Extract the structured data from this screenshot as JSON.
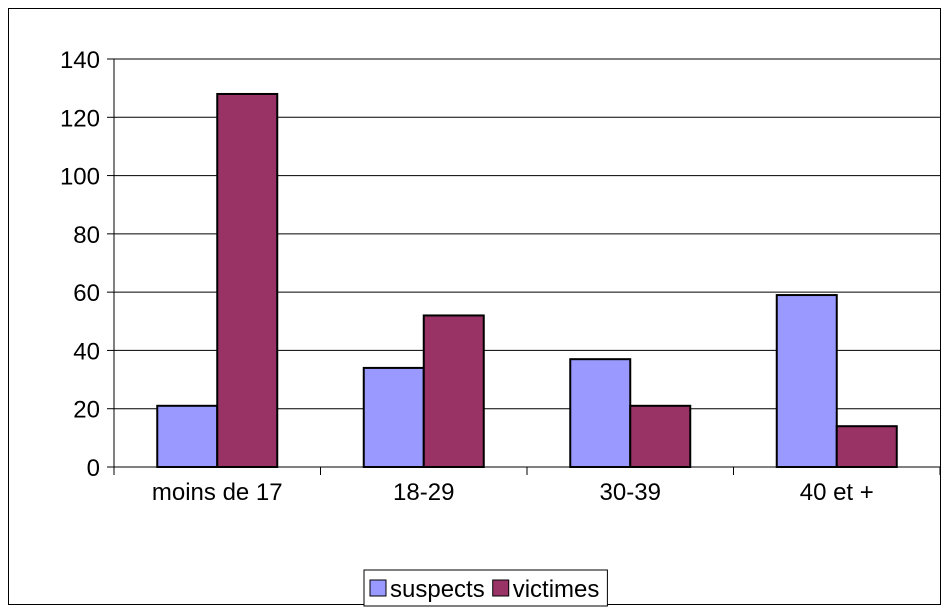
{
  "chart_data": {
    "type": "bar",
    "categories": [
      "moins de 17",
      "18-29",
      "30-39",
      "40 et +"
    ],
    "series": [
      {
        "name": "suspects",
        "values": [
          21,
          34,
          37,
          59
        ],
        "color": "#9999ff"
      },
      {
        "name": "victimes",
        "values": [
          128,
          52,
          21,
          14
        ],
        "color": "#993366"
      }
    ],
    "ylim": [
      0,
      140
    ],
    "yticks": [
      0,
      20,
      40,
      60,
      80,
      100,
      120,
      140
    ],
    "grid": true,
    "legend_position": "bottom"
  }
}
